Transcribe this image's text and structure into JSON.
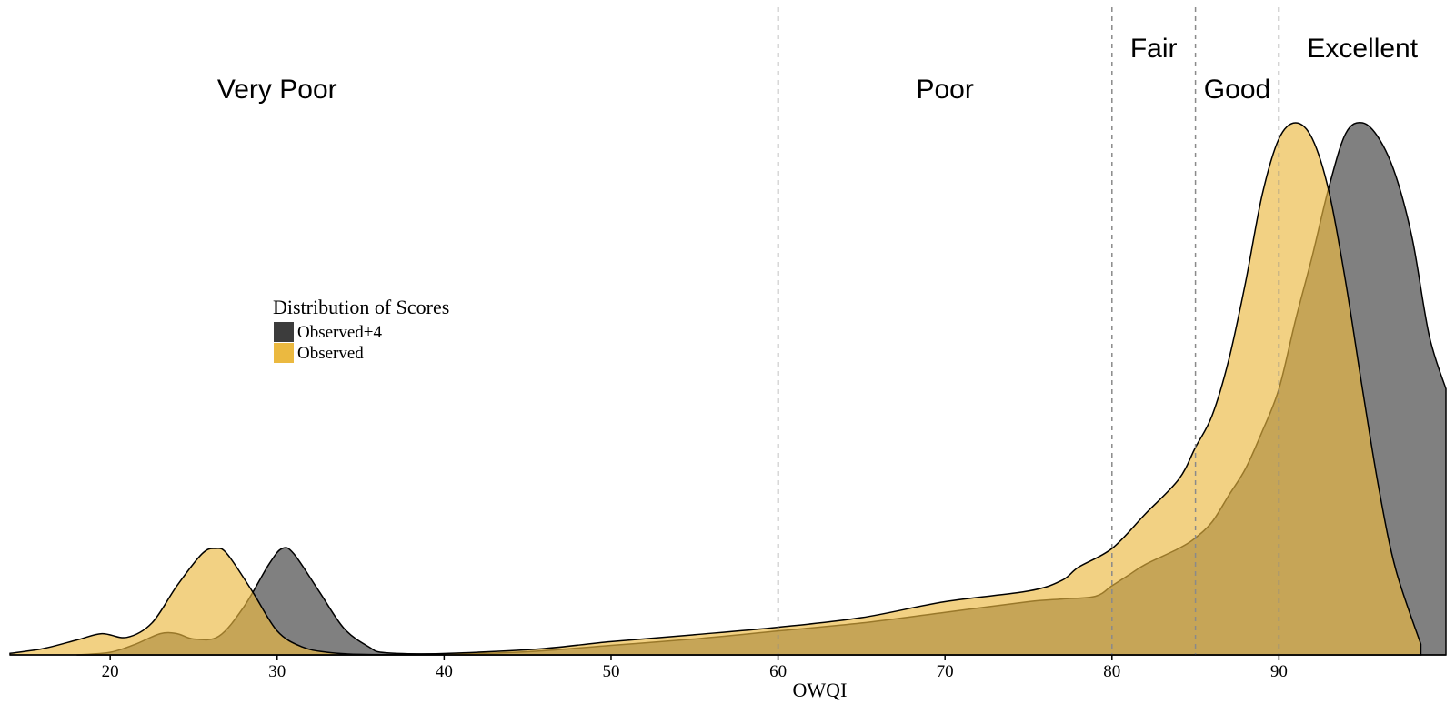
{
  "chart_data": {
    "type": "area",
    "title": "",
    "xlabel": "OWQI",
    "ylabel": "",
    "xlim": [
      14,
      100
    ],
    "ylim": [
      0,
      1
    ],
    "x_ticks": [
      20,
      30,
      40,
      50,
      60,
      70,
      80,
      90
    ],
    "grid": false,
    "legend": {
      "title": "Distribution of Scores",
      "placement": "center-left",
      "entries": [
        {
          "name": "Observed+4",
          "color": "#3c3c3c"
        },
        {
          "name": "Observed",
          "color": "#ebb940"
        }
      ]
    },
    "thresholds": [
      {
        "x": 60
      },
      {
        "x": 80
      },
      {
        "x": 85
      },
      {
        "x": 90
      }
    ],
    "zones": [
      {
        "label": "Very Poor",
        "x": 30,
        "row": 2
      },
      {
        "label": "Poor",
        "x": 70,
        "row": 2
      },
      {
        "label": "Fair",
        "x": 82.5,
        "row": 1
      },
      {
        "label": "Good",
        "x": 87.5,
        "row": 2
      },
      {
        "label": "Excellent",
        "x": 95,
        "row": 1
      }
    ],
    "series": [
      {
        "name": "Observed",
        "color": "#ebb940",
        "x": [
          14,
          16,
          18,
          19.5,
          21,
          22.5,
          24,
          25.5,
          26.3,
          27,
          28.5,
          30,
          31.5,
          33,
          35,
          38,
          42,
          46,
          50,
          55,
          60,
          65,
          70,
          75,
          77,
          78,
          80,
          82,
          84,
          85,
          86,
          87,
          88,
          89,
          90,
          91,
          92,
          93,
          94,
          95,
          96,
          97,
          98.5
        ],
        "y": [
          0.003,
          0.012,
          0.028,
          0.04,
          0.033,
          0.06,
          0.13,
          0.19,
          0.2,
          0.19,
          0.12,
          0.045,
          0.015,
          0.005,
          0.001,
          0.001,
          0.005,
          0.012,
          0.025,
          0.038,
          0.052,
          0.07,
          0.1,
          0.12,
          0.14,
          0.165,
          0.2,
          0.265,
          0.33,
          0.39,
          0.45,
          0.555,
          0.7,
          0.865,
          0.97,
          1.0,
          0.97,
          0.87,
          0.7,
          0.5,
          0.31,
          0.16,
          0.02
        ]
      },
      {
        "name": "Observed+4",
        "color": "#3c3c3c",
        "x": [
          18,
          20,
          21.5,
          23,
          24,
          25,
          26.5,
          28,
          29.5,
          30.3,
          31,
          32.5,
          34,
          35.5,
          36.5,
          40,
          45,
          50,
          55,
          60,
          65,
          70,
          75,
          77,
          79,
          80,
          81,
          82,
          84,
          85,
          86,
          87,
          88,
          89,
          90,
          91,
          92,
          93,
          94,
          95,
          96,
          97,
          98,
          99,
          100
        ],
        "y": [
          0.0,
          0.005,
          0.02,
          0.04,
          0.04,
          0.03,
          0.035,
          0.09,
          0.17,
          0.2,
          0.19,
          0.12,
          0.05,
          0.015,
          0.004,
          0.002,
          0.006,
          0.018,
          0.03,
          0.045,
          0.06,
          0.08,
          0.1,
          0.105,
          0.11,
          0.13,
          0.15,
          0.17,
          0.2,
          0.22,
          0.25,
          0.3,
          0.35,
          0.42,
          0.5,
          0.63,
          0.75,
          0.88,
          0.98,
          1.0,
          0.97,
          0.9,
          0.78,
          0.6,
          0.5
        ]
      }
    ]
  }
}
